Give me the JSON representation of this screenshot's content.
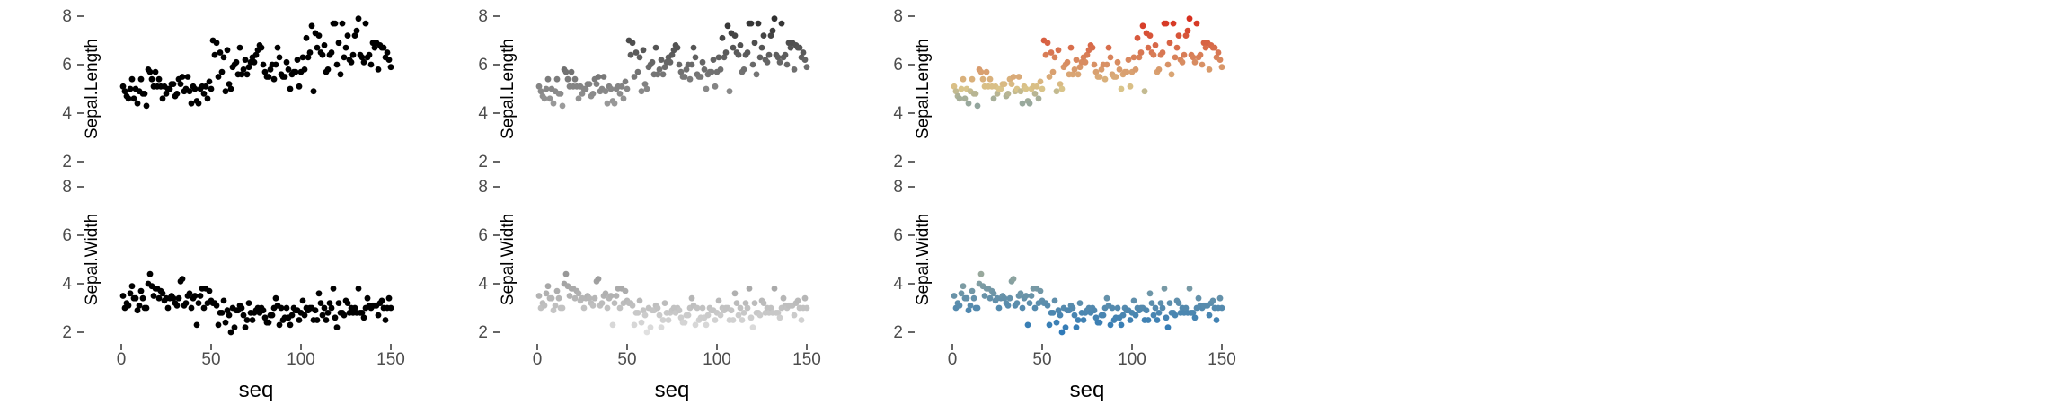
{
  "figure": {
    "panel_count": 3,
    "colors": {
      "panel_1": "#000000",
      "panel_2_low": "#e0e0e0",
      "panel_2_high": "#303030",
      "panel_3_low_blue": "#2f7ab8",
      "panel_3_mid_sand": "#d9c48a",
      "panel_3_high_red": "#d7301f"
    }
  },
  "chart_data": [
    {
      "type": "scatter",
      "title": "",
      "coloring": "all points black",
      "xlabel": "seq",
      "xlim": [
        0,
        150
      ],
      "x_ticks": [
        "0",
        "50",
        "100",
        "150"
      ],
      "facets": [
        {
          "ylabel": "Sepal.Length",
          "ylim": [
            2,
            8
          ],
          "y_ticks": [
            "2",
            "4",
            "6",
            "8"
          ],
          "x": [
            1,
            2,
            3,
            4,
            5,
            6,
            7,
            8,
            9,
            10,
            11,
            12,
            13,
            14,
            15,
            16,
            17,
            18,
            19,
            20,
            21,
            22,
            23,
            24,
            25,
            26,
            27,
            28,
            29,
            30,
            31,
            32,
            33,
            34,
            35,
            36,
            37,
            38,
            39,
            40,
            41,
            42,
            43,
            44,
            45,
            46,
            47,
            48,
            49,
            50,
            51,
            52,
            53,
            54,
            55,
            56,
            57,
            58,
            59,
            60,
            61,
            62,
            63,
            64,
            65,
            66,
            67,
            68,
            69,
            70,
            71,
            72,
            73,
            74,
            75,
            76,
            77,
            78,
            79,
            80,
            81,
            82,
            83,
            84,
            85,
            86,
            87,
            88,
            89,
            90,
            91,
            92,
            93,
            94,
            95,
            96,
            97,
            98,
            99,
            100,
            101,
            102,
            103,
            104,
            105,
            106,
            107,
            108,
            109,
            110,
            111,
            112,
            113,
            114,
            115,
            116,
            117,
            118,
            119,
            120,
            121,
            122,
            123,
            124,
            125,
            126,
            127,
            128,
            129,
            130,
            131,
            132,
            133,
            134,
            135,
            136,
            137,
            138,
            139,
            140,
            141,
            142,
            143,
            144,
            145,
            146,
            147,
            148,
            149,
            150
          ],
          "y": [
            5.1,
            4.9,
            4.7,
            4.6,
            5.0,
            5.4,
            4.6,
            5.0,
            4.4,
            4.9,
            5.4,
            4.8,
            4.8,
            4.3,
            5.8,
            5.7,
            5.4,
            5.1,
            5.7,
            5.1,
            5.4,
            5.1,
            4.6,
            5.1,
            4.8,
            5.0,
            5.0,
            5.2,
            5.2,
            4.7,
            4.8,
            5.4,
            5.2,
            5.5,
            4.9,
            5.0,
            5.5,
            4.9,
            4.4,
            5.1,
            5.0,
            4.5,
            4.4,
            5.0,
            5.1,
            4.8,
            5.1,
            4.6,
            5.3,
            5.0,
            7.0,
            6.4,
            6.9,
            5.5,
            6.5,
            5.7,
            6.3,
            4.9,
            6.6,
            5.2,
            5.0,
            5.9,
            6.0,
            6.1,
            5.6,
            6.7,
            5.6,
            5.8,
            6.2,
            5.6,
            5.9,
            6.1,
            6.3,
            6.1,
            6.4,
            6.6,
            6.8,
            6.7,
            6.0,
            5.7,
            5.5,
            5.5,
            5.8,
            6.0,
            5.4,
            6.0,
            6.7,
            6.3,
            5.6,
            5.5,
            5.5,
            6.1,
            5.8,
            5.0,
            5.6,
            5.7,
            5.7,
            6.2,
            5.1,
            5.7,
            6.3,
            5.8,
            7.1,
            6.3,
            6.5,
            7.6,
            4.9,
            7.3,
            6.7,
            7.2,
            6.5,
            6.4,
            6.8,
            5.7,
            5.8,
            6.4,
            6.5,
            7.7,
            7.7,
            6.0,
            6.9,
            5.6,
            7.7,
            6.3,
            6.7,
            7.2,
            6.2,
            6.1,
            6.4,
            7.2,
            7.4,
            7.9,
            6.4,
            6.3,
            6.1,
            7.7,
            6.3,
            6.4,
            6.0,
            6.9,
            6.7,
            6.9,
            5.8,
            6.8,
            6.7,
            6.7,
            6.3,
            6.5,
            6.2,
            5.9
          ]
        },
        {
          "ylabel": "Sepal.Width",
          "ylim": [
            2,
            8
          ],
          "y_ticks": [
            "2",
            "4",
            "6",
            "8"
          ],
          "x": [
            1,
            2,
            3,
            4,
            5,
            6,
            7,
            8,
            9,
            10,
            11,
            12,
            13,
            14,
            15,
            16,
            17,
            18,
            19,
            20,
            21,
            22,
            23,
            24,
            25,
            26,
            27,
            28,
            29,
            30,
            31,
            32,
            33,
            34,
            35,
            36,
            37,
            38,
            39,
            40,
            41,
            42,
            43,
            44,
            45,
            46,
            47,
            48,
            49,
            50,
            51,
            52,
            53,
            54,
            55,
            56,
            57,
            58,
            59,
            60,
            61,
            62,
            63,
            64,
            65,
            66,
            67,
            68,
            69,
            70,
            71,
            72,
            73,
            74,
            75,
            76,
            77,
            78,
            79,
            80,
            81,
            82,
            83,
            84,
            85,
            86,
            87,
            88,
            89,
            90,
            91,
            92,
            93,
            94,
            95,
            96,
            97,
            98,
            99,
            100,
            101,
            102,
            103,
            104,
            105,
            106,
            107,
            108,
            109,
            110,
            111,
            112,
            113,
            114,
            115,
            116,
            117,
            118,
            119,
            120,
            121,
            122,
            123,
            124,
            125,
            126,
            127,
            128,
            129,
            130,
            131,
            132,
            133,
            134,
            135,
            136,
            137,
            138,
            139,
            140,
            141,
            142,
            143,
            144,
            145,
            146,
            147,
            148,
            149,
            150
          ],
          "y": [
            3.5,
            3.0,
            3.2,
            3.1,
            3.6,
            3.9,
            3.4,
            3.4,
            2.9,
            3.1,
            3.7,
            3.4,
            3.0,
            3.0,
            4.0,
            4.4,
            3.9,
            3.5,
            3.8,
            3.8,
            3.4,
            3.7,
            3.6,
            3.3,
            3.4,
            3.0,
            3.4,
            3.5,
            3.4,
            3.2,
            3.1,
            3.4,
            4.1,
            4.2,
            3.1,
            3.2,
            3.5,
            3.6,
            3.0,
            3.4,
            3.5,
            2.3,
            3.2,
            3.5,
            3.8,
            3.0,
            3.8,
            3.2,
            3.7,
            3.3,
            3.2,
            3.2,
            3.1,
            2.3,
            2.8,
            2.8,
            3.3,
            2.4,
            2.9,
            2.7,
            2.0,
            3.0,
            2.2,
            2.9,
            2.9,
            3.1,
            3.0,
            2.7,
            2.2,
            2.5,
            3.2,
            2.8,
            2.5,
            2.8,
            2.9,
            3.0,
            2.8,
            3.0,
            2.9,
            2.6,
            2.4,
            2.4,
            2.7,
            2.7,
            3.0,
            3.4,
            3.1,
            2.3,
            3.0,
            2.5,
            2.6,
            3.0,
            2.6,
            2.3,
            2.7,
            3.0,
            2.9,
            2.9,
            2.5,
            2.8,
            3.3,
            2.7,
            3.0,
            2.9,
            3.0,
            3.0,
            2.5,
            2.9,
            2.5,
            3.6,
            3.2,
            2.7,
            3.0,
            2.5,
            2.8,
            3.2,
            3.0,
            3.8,
            2.6,
            2.2,
            3.2,
            2.8,
            2.8,
            2.7,
            3.3,
            3.2,
            2.8,
            3.0,
            2.8,
            3.0,
            2.8,
            3.8,
            2.8,
            2.8,
            2.6,
            3.0,
            3.4,
            3.1,
            3.0,
            3.1,
            3.1,
            3.1,
            2.7,
            3.2,
            3.3,
            3.0,
            2.5,
            3.0,
            3.4,
            3.0
          ]
        }
      ]
    },
    {
      "type": "scatter",
      "title": "",
      "coloring": "grey gradient by value",
      "xlabel": "seq",
      "xlim": [
        0,
        150
      ],
      "x_ticks": [
        "0",
        "50",
        "100",
        "150"
      ],
      "facets": [
        {
          "ylabel": "Sepal.Length",
          "ylim": [
            2,
            8
          ],
          "y_ticks": [
            "2",
            "4",
            "6",
            "8"
          ],
          "same_data_as_panel": 1
        },
        {
          "ylabel": "Sepal.Width",
          "ylim": [
            2,
            8
          ],
          "y_ticks": [
            "2",
            "4",
            "6",
            "8"
          ],
          "same_data_as_panel": 1
        }
      ]
    },
    {
      "type": "scatter",
      "title": "",
      "coloring": "diverging blue-sand-red gradient by value",
      "xlabel": "seq",
      "xlim": [
        0,
        150
      ],
      "x_ticks": [
        "0",
        "50",
        "100",
        "150"
      ],
      "facets": [
        {
          "ylabel": "Sepal.Length",
          "ylim": [
            2,
            8
          ],
          "y_ticks": [
            "2",
            "4",
            "6",
            "8"
          ],
          "same_data_as_panel": 1
        },
        {
          "ylabel": "Sepal.Width",
          "ylim": [
            2,
            8
          ],
          "y_ticks": [
            "2",
            "4",
            "6",
            "8"
          ],
          "same_data_as_panel": 1
        }
      ]
    }
  ]
}
